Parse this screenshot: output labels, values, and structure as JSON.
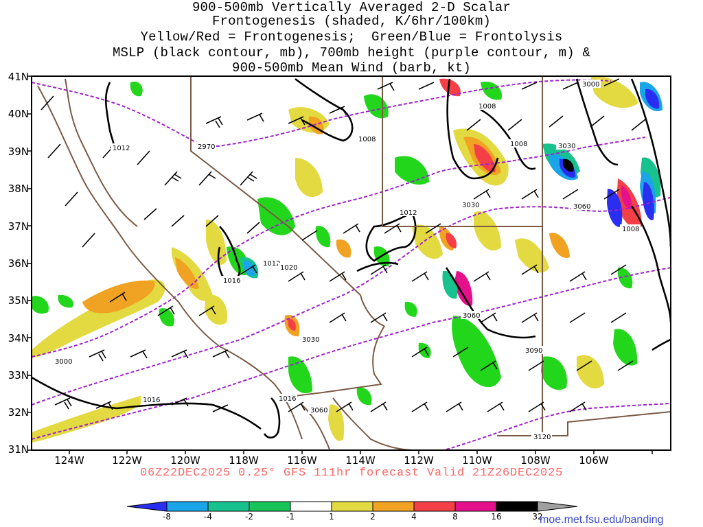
{
  "title_lines": [
    "900-500mb Vertically Averaged 2-D Scalar",
    "Frontogenesis (shaded, K/6hr/100km)",
    "Yellow/Red = Frontogenesis;  Green/Blue = Frontolysis",
    "MSLP (black contour, mb), 700mb height (purple contour, m) &",
    "900-500mb Mean Wind (barb, kt)"
  ],
  "lat_labels": [
    "41N",
    "40N",
    "39N",
    "38N",
    "37N",
    "36N",
    "35N",
    "34N",
    "33N",
    "32N",
    "31N"
  ],
  "lon_labels": [
    "124W",
    "122W",
    "120W",
    "118W",
    "116W",
    "114W",
    "112W",
    "110W",
    "108W",
    "106W"
  ],
  "footer": "06Z22DEC2025 0.25° GFS 111hr forecast Valid 21Z26DEC2025",
  "colorbar": {
    "labels": [
      "-8",
      "-4",
      "-2",
      "-1",
      "1",
      "2",
      "4",
      "8",
      "16",
      "32"
    ],
    "colors": [
      "#2a2ef0",
      "#1aa5e8",
      "#17c28f",
      "#16c45a",
      "#22d61c",
      "#ffffff",
      "#e3d940",
      "#f0a222",
      "#f07a28",
      "#f43f46",
      "#e5118a",
      "#000000",
      "#a0a0a0"
    ]
  },
  "mslp_labels": [
    "1012",
    "1012",
    "1016",
    "1012",
    "1020",
    "1008",
    "1008",
    "1008",
    "1012",
    "1008",
    "1016",
    "1016"
  ],
  "height_labels": [
    "2970",
    "3000",
    "3030",
    "3030",
    "3060",
    "3060",
    "3060",
    "3090",
    "3120",
    "3030",
    "3000"
  ],
  "credit": "moe.met.fsu.edu/banding"
}
